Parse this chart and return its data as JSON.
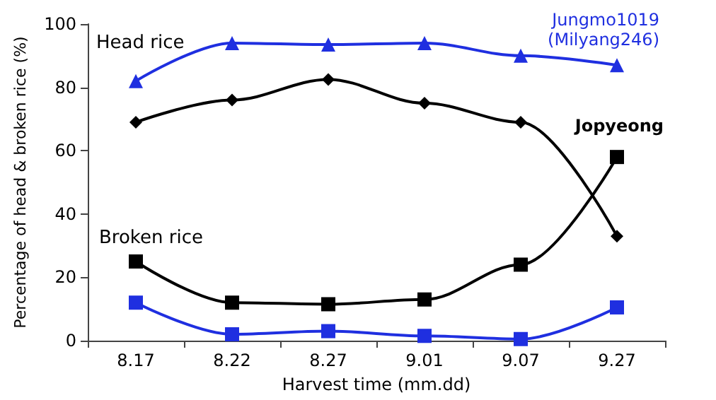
{
  "chart_data": {
    "type": "line",
    "xlabel": "Harvest time (mm.dd)",
    "ylabel": "Percentage of head & broken rice (%)",
    "categories": [
      "8.17",
      "8.22",
      "8.27",
      "9.01",
      "9.07",
      "9.27"
    ],
    "series": [
      {
        "name": "Jungmo1019 (Milyang246)",
        "color": "#1f2fe0",
        "marker": "triangle",
        "values": [
          82,
          94,
          93.5,
          94,
          90,
          87
        ]
      },
      {
        "color": "#000000",
        "marker": "diamond",
        "values": [
          69,
          76,
          82.5,
          75,
          69,
          33
        ]
      },
      {
        "name": "Jopyeong",
        "color": "#000000",
        "marker": "square",
        "values": [
          25,
          12,
          11.5,
          13,
          24,
          58
        ]
      },
      {
        "color": "#1f2fe0",
        "marker": "square",
        "values": [
          12,
          2,
          3,
          1.5,
          0.5,
          10.5
        ]
      }
    ],
    "annotations": [
      "Head rice",
      "Broken rice"
    ],
    "ylim": [
      0,
      100
    ],
    "yticks": [
      0,
      20,
      40,
      60,
      80,
      100
    ],
    "grid": false,
    "legend": false,
    "line_style": "solid"
  }
}
